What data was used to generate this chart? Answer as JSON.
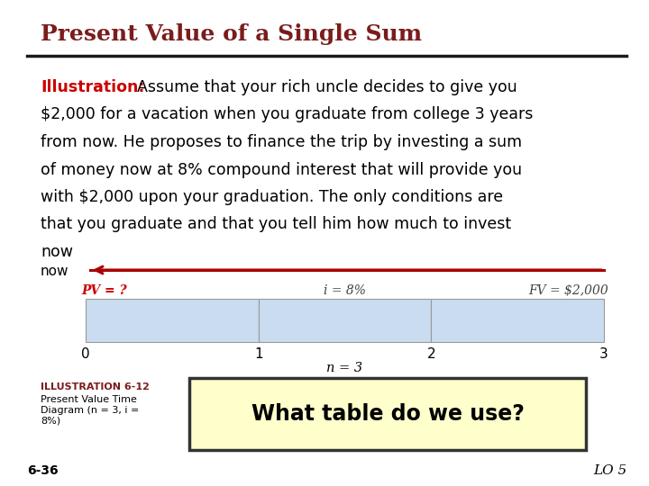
{
  "title": "Present Value of a Single Sum",
  "title_color": "#7B1C1C",
  "title_fontsize": 18,
  "bg_color": "#FFFFFF",
  "illustration_label": "Illustration:",
  "illustration_color": "#CC0000",
  "body_fontsize": 12.5,
  "body_lines": [
    [
      "Assume that your rich uncle decides to give you"
    ],
    [
      "$2,000 for a vacation when you graduate from college 3 years"
    ],
    [
      "from now. He proposes to finance the trip by investing a sum"
    ],
    [
      "of money now at 8% compound interest that will provide you"
    ],
    [
      "with $2,000 upon your graduation. The only conditions are"
    ],
    [
      "that you graduate and that you tell him how much to invest"
    ],
    [
      "now"
    ]
  ],
  "timeline_ticks": [
    0,
    1,
    2,
    3
  ],
  "timeline_label_n": "n = 3",
  "pv_label": "PV = ?",
  "pv_label_color": "#CC0000",
  "i_label": "i = 8%",
  "fv_label": "FV = $2,000",
  "arrow_color": "#AA0000",
  "box_fill_color": "#C9DCF0",
  "box_edge_color": "#999999",
  "caption_title": "ILLUSTRATION 6-12",
  "caption_body": "Present Value Time\nDiagram (n = 3, i =\n8%)",
  "bottom_left": "6-36",
  "bottom_right": "LO 5",
  "button_text": "What table do we use?",
  "button_bg": "#FFFFCC",
  "button_border": "#333333",
  "separator_color": "#1a1a1a",
  "now_label": "now"
}
